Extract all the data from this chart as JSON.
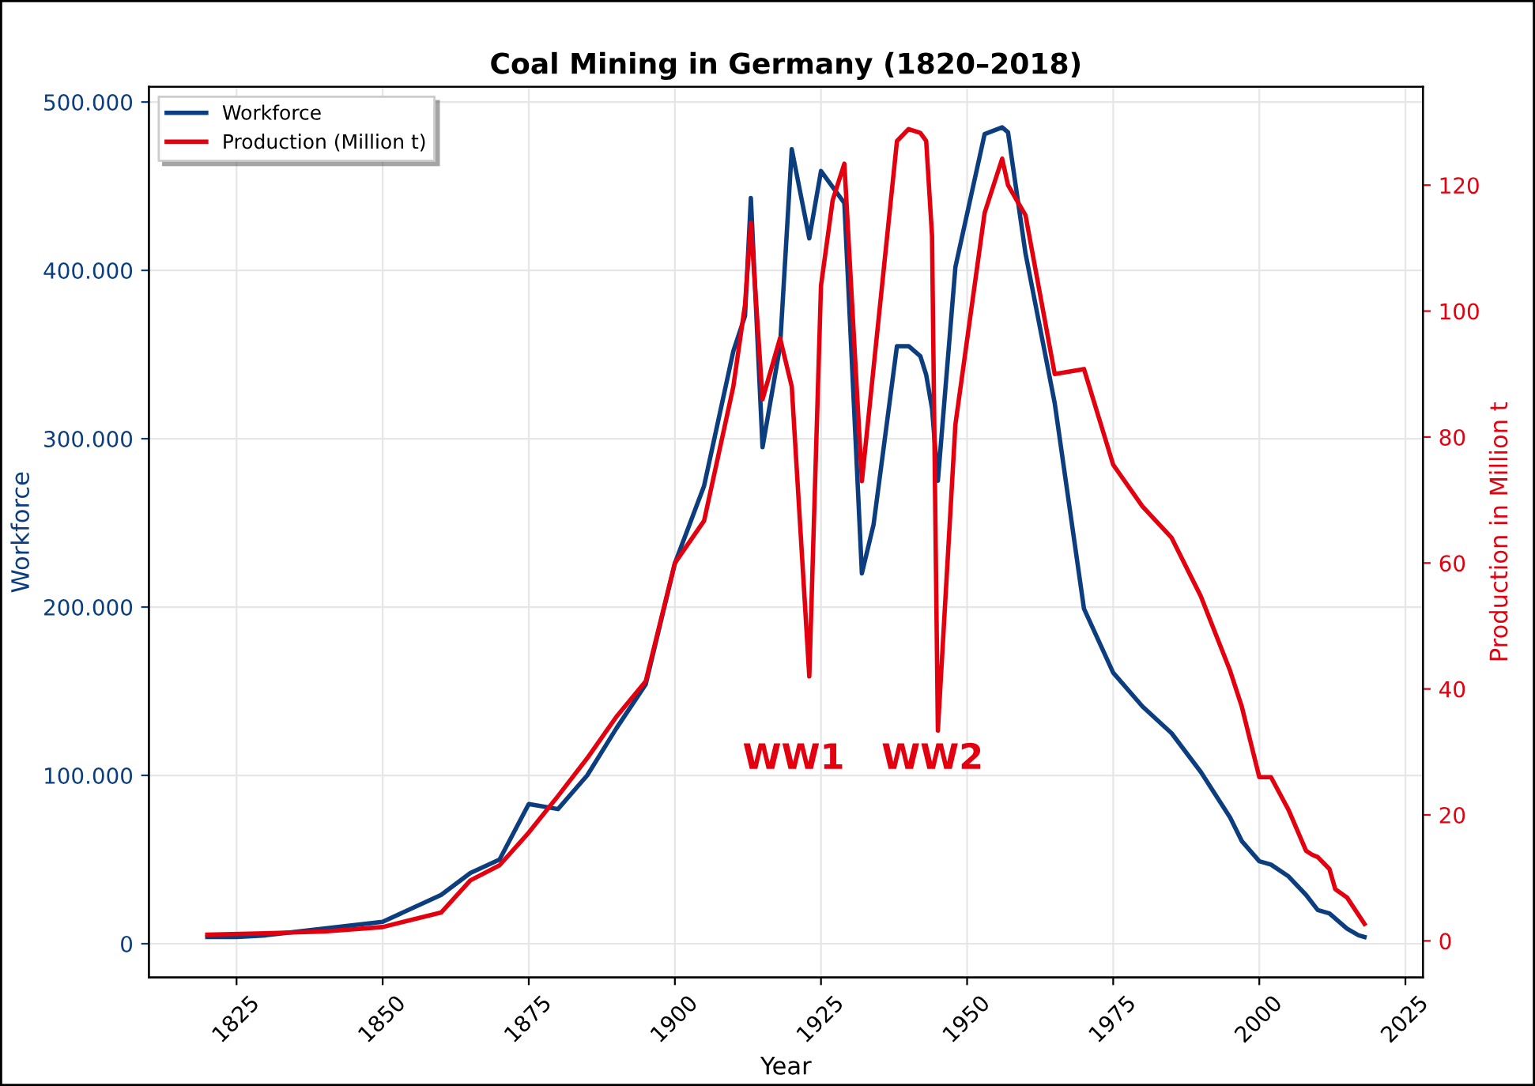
{
  "chart_data": {
    "type": "line",
    "title": "Coal Mining in Germany (1820–2018)",
    "xlabel": "Year",
    "ylabel": "Workforce",
    "y2label": "Production in Million t",
    "xlim": [
      1810,
      2028
    ],
    "xticks": [
      1825,
      1850,
      1875,
      1900,
      1925,
      1950,
      1975,
      2000,
      2025
    ],
    "ylim": [
      -20000,
      509000
    ],
    "yticks": [
      {
        "value": 0,
        "label": "0"
      },
      {
        "value": 100000,
        "label": "100.000"
      },
      {
        "value": 200000,
        "label": "200.000"
      },
      {
        "value": 300000,
        "label": "300.000"
      },
      {
        "value": 400000,
        "label": "400.000"
      },
      {
        "value": 500000,
        "label": "500.000"
      }
    ],
    "y2lim": [
      -5.8,
      135.6
    ],
    "y2ticks": [
      0,
      20,
      40,
      60,
      80,
      100,
      120
    ],
    "grid": true,
    "legend": "top left",
    "annotations": [
      "WW1",
      "WW2"
    ],
    "series": [
      {
        "name": "Workforce",
        "color": "#0b3d7f",
        "x": [
          1820,
          1825,
          1830,
          1840,
          1850,
          1860,
          1865,
          1870,
          1875,
          1880,
          1885,
          1890,
          1895,
          1900,
          1905,
          1910,
          1912,
          1913,
          1915,
          1918,
          1920,
          1923,
          1925,
          1929,
          1932,
          1934,
          1938,
          1940,
          1942,
          1943,
          1944,
          1945,
          1948,
          1953,
          1956,
          1957,
          1960,
          1965,
          1970,
          1975,
          1980,
          1985,
          1990,
          1995,
          1997,
          2000,
          2002,
          2005,
          2008,
          2010,
          2012,
          2015,
          2017,
          2018
        ],
        "values": [
          4000,
          4000,
          5000,
          9000,
          13000,
          29000,
          42000,
          50000,
          83000,
          80000,
          100000,
          128000,
          154000,
          226000,
          272000,
          352000,
          373000,
          443000,
          295000,
          355000,
          472000,
          419000,
          459000,
          440000,
          220000,
          249000,
          355000,
          355000,
          349000,
          338000,
          318000,
          275000,
          402000,
          481000,
          485000,
          482000,
          410000,
          321000,
          199000,
          161000,
          141000,
          125000,
          102000,
          75000,
          61000,
          49000,
          47000,
          40000,
          29000,
          20000,
          18000,
          9000,
          5000,
          4000
        ]
      },
      {
        "name": "Production (Million t)",
        "color": "#e3000f",
        "axis": "y2",
        "x": [
          1820,
          1830,
          1840,
          1850,
          1860,
          1865,
          1870,
          1875,
          1880,
          1885,
          1890,
          1895,
          1900,
          1905,
          1910,
          1912,
          1913,
          1915,
          1918,
          1920,
          1923,
          1925,
          1927,
          1929,
          1932,
          1938,
          1940,
          1942,
          1943,
          1944,
          1945,
          1948,
          1953,
          1956,
          1957,
          1960,
          1965,
          1970,
          1975,
          1980,
          1985,
          1990,
          1995,
          1997,
          2000,
          2002,
          2005,
          2008,
          2009,
          2010,
          2012,
          2013,
          2015,
          2017,
          2018
        ],
        "values": [
          1,
          1.2,
          1.5,
          2.2,
          4.5,
          9.6,
          12,
          17.2,
          23,
          29,
          35.6,
          41.2,
          60,
          66.7,
          88,
          101,
          114,
          86,
          95.7,
          88,
          42,
          104,
          117.6,
          123.4,
          73,
          127,
          128.9,
          128.3,
          127,
          112,
          33.4,
          82,
          115.6,
          124.2,
          120,
          115.2,
          90,
          90.8,
          75.6,
          69,
          64,
          54.7,
          42.9,
          37.2,
          26,
          26,
          20.8,
          14.3,
          13.7,
          13.3,
          11.4,
          8.2,
          6.9,
          4.1,
          2.7
        ]
      }
    ]
  }
}
